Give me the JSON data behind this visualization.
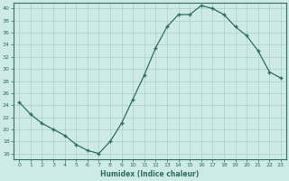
{
  "x": [
    0,
    1,
    2,
    3,
    4,
    5,
    6,
    7,
    8,
    9,
    10,
    11,
    12,
    13,
    14,
    15,
    16,
    17,
    18,
    19,
    20,
    21,
    22,
    23
  ],
  "y": [
    24.5,
    22.5,
    21,
    20,
    19,
    17.5,
    16.5,
    16,
    18,
    21,
    25,
    29,
    33.5,
    37,
    39,
    39,
    40.5,
    40,
    39,
    37,
    35.5,
    33,
    29.5,
    28.5
  ],
  "line_color": "#2d6e65",
  "marker_color": "#2d6e65",
  "bg_color": "#cdeae6",
  "grid_color": "#aacfcb",
  "axis_color": "#2d6e65",
  "xlabel": "Humidex (Indice chaleur)",
  "xlim": [
    -0.5,
    23.5
  ],
  "ylim": [
    15,
    41
  ],
  "yticks": [
    16,
    18,
    20,
    22,
    24,
    26,
    28,
    30,
    32,
    34,
    36,
    38,
    40
  ],
  "xticks": [
    0,
    1,
    2,
    3,
    4,
    5,
    6,
    7,
    8,
    9,
    10,
    11,
    12,
    13,
    14,
    15,
    16,
    17,
    18,
    19,
    20,
    21,
    22,
    23
  ]
}
